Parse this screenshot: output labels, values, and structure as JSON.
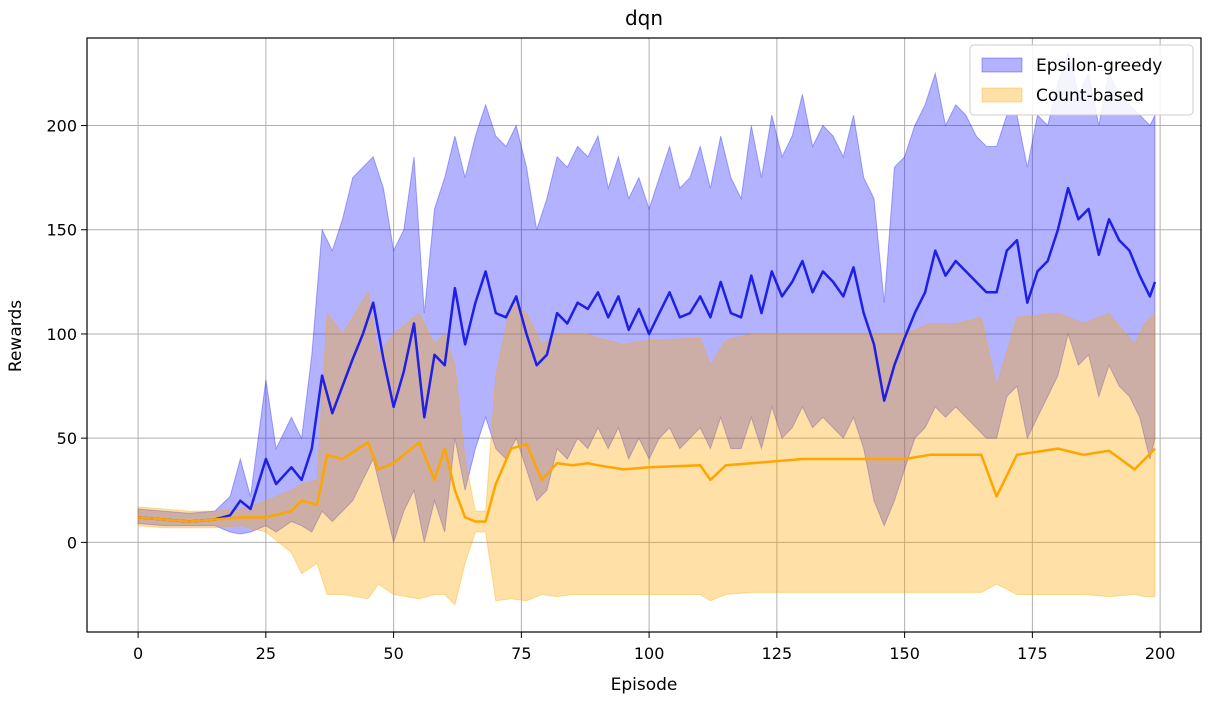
{
  "chart_data": {
    "type": "area",
    "title": "dqn",
    "xlabel": "Episode",
    "ylabel": "Rewards",
    "xlim": [
      -10,
      208
    ],
    "ylim": [
      -43,
      242
    ],
    "grid": true,
    "legend_placement": "top-right",
    "xticks": [
      0,
      25,
      50,
      75,
      100,
      125,
      150,
      175,
      200
    ],
    "yticks": [
      0,
      50,
      100,
      150,
      200
    ],
    "series": [
      {
        "name": "Epsilon-greedy",
        "mean_color": "#1f1fe6",
        "band_color": "#0000ff",
        "band_opacity": 0.3,
        "x": [
          0,
          5,
          10,
          15,
          18,
          20,
          22,
          25,
          27,
          30,
          32,
          34,
          36,
          38,
          40,
          42,
          44,
          46,
          48,
          50,
          52,
          54,
          56,
          58,
          60,
          62,
          64,
          66,
          68,
          70,
          72,
          74,
          76,
          78,
          80,
          82,
          84,
          86,
          88,
          90,
          92,
          94,
          96,
          98,
          100,
          102,
          104,
          106,
          108,
          110,
          112,
          114,
          116,
          118,
          120,
          122,
          124,
          126,
          128,
          130,
          132,
          134,
          136,
          138,
          140,
          142,
          144,
          146,
          148,
          150,
          152,
          154,
          156,
          158,
          160,
          162,
          164,
          166,
          168,
          170,
          172,
          174,
          176,
          178,
          180,
          182,
          184,
          186,
          188,
          190,
          192,
          194,
          196,
          198,
          199
        ],
        "mean": [
          12,
          11,
          10,
          11,
          13,
          20,
          16,
          40,
          28,
          36,
          30,
          45,
          80,
          62,
          75,
          88,
          100,
          115,
          88,
          65,
          82,
          105,
          60,
          90,
          85,
          122,
          95,
          115,
          130,
          110,
          108,
          118,
          100,
          85,
          90,
          110,
          105,
          115,
          112,
          120,
          108,
          118,
          102,
          112,
          100,
          110,
          120,
          108,
          110,
          118,
          108,
          125,
          110,
          108,
          128,
          110,
          130,
          118,
          125,
          135,
          120,
          130,
          125,
          118,
          132,
          110,
          95,
          68,
          85,
          98,
          110,
          120,
          140,
          128,
          135,
          130,
          125,
          120,
          120,
          140,
          145,
          115,
          130,
          135,
          150,
          170,
          155,
          160,
          138,
          155,
          145,
          140,
          128,
          118,
          125
        ],
        "upper": [
          16,
          15,
          14,
          15,
          22,
          40,
          22,
          78,
          45,
          60,
          50,
          90,
          150,
          140,
          155,
          175,
          180,
          185,
          170,
          140,
          150,
          185,
          110,
          160,
          175,
          195,
          175,
          195,
          210,
          195,
          190,
          200,
          180,
          150,
          165,
          185,
          180,
          190,
          185,
          195,
          170,
          185,
          165,
          175,
          160,
          175,
          190,
          170,
          175,
          190,
          170,
          195,
          175,
          165,
          200,
          175,
          205,
          185,
          195,
          215,
          190,
          200,
          195,
          185,
          205,
          175,
          165,
          115,
          180,
          185,
          200,
          210,
          225,
          200,
          210,
          205,
          195,
          190,
          190,
          205,
          205,
          180,
          205,
          200,
          220,
          235,
          215,
          225,
          200,
          225,
          215,
          210,
          205,
          200,
          205
        ],
        "lower": [
          9,
          8,
          8,
          8,
          5,
          4,
          5,
          8,
          5,
          10,
          8,
          5,
          15,
          10,
          15,
          20,
          30,
          40,
          20,
          0,
          15,
          25,
          0,
          20,
          5,
          50,
          25,
          45,
          60,
          45,
          40,
          50,
          35,
          20,
          25,
          45,
          40,
          50,
          45,
          55,
          45,
          55,
          40,
          50,
          40,
          50,
          55,
          45,
          50,
          55,
          45,
          60,
          45,
          45,
          60,
          45,
          65,
          50,
          55,
          65,
          55,
          60,
          55,
          50,
          60,
          45,
          20,
          8,
          20,
          35,
          50,
          55,
          65,
          60,
          65,
          60,
          55,
          50,
          50,
          70,
          75,
          50,
          60,
          70,
          80,
          100,
          85,
          90,
          70,
          85,
          75,
          70,
          60,
          40,
          50
        ]
      },
      {
        "name": "Count-based",
        "mean_color": "#ffa500",
        "band_color": "#ffa500",
        "band_opacity": 0.35,
        "x": [
          0,
          5,
          10,
          15,
          20,
          25,
          30,
          32,
          35,
          37,
          40,
          45,
          47,
          50,
          55,
          58,
          60,
          62,
          64,
          66,
          68,
          70,
          73,
          76,
          79,
          82,
          85,
          88,
          90,
          95,
          100,
          110,
          112,
          115,
          120,
          130,
          140,
          145,
          150,
          155,
          160,
          165,
          168,
          172,
          180,
          185,
          190,
          195,
          197,
          199
        ],
        "mean": [
          12,
          11,
          10,
          11,
          12,
          12,
          15,
          20,
          18,
          42,
          40,
          48,
          35,
          38,
          48,
          30,
          45,
          25,
          12,
          10,
          10,
          28,
          45,
          47,
          30,
          38,
          37,
          38,
          37,
          35,
          36,
          37,
          30,
          37,
          38,
          40,
          40,
          40,
          40,
          42,
          42,
          42,
          22,
          42,
          45,
          42,
          44,
          35,
          40,
          45
        ],
        "upper": [
          17,
          16,
          15,
          15,
          16,
          20,
          25,
          28,
          30,
          110,
          100,
          120,
          90,
          100,
          110,
          95,
          100,
          85,
          40,
          15,
          15,
          80,
          115,
          110,
          95,
          100,
          100,
          100,
          98,
          95,
          97,
          98,
          85,
          97,
          100,
          100,
          100,
          100,
          100,
          105,
          105,
          108,
          75,
          108,
          110,
          105,
          110,
          95,
          105,
          110
        ],
        "lower": [
          8,
          7,
          7,
          7,
          8,
          5,
          -5,
          -15,
          -10,
          -25,
          -25,
          -27,
          -20,
          -25,
          -27,
          -25,
          -25,
          -30,
          -10,
          5,
          5,
          -28,
          -27,
          -28,
          -25,
          -26,
          -25,
          -25,
          -25,
          -25,
          -25,
          -25,
          -28,
          -25,
          -24,
          -24,
          -24,
          -24,
          -24,
          -24,
          -24,
          -24,
          -20,
          -25,
          -25,
          -25,
          -26,
          -25,
          -26,
          -26
        ]
      }
    ]
  }
}
